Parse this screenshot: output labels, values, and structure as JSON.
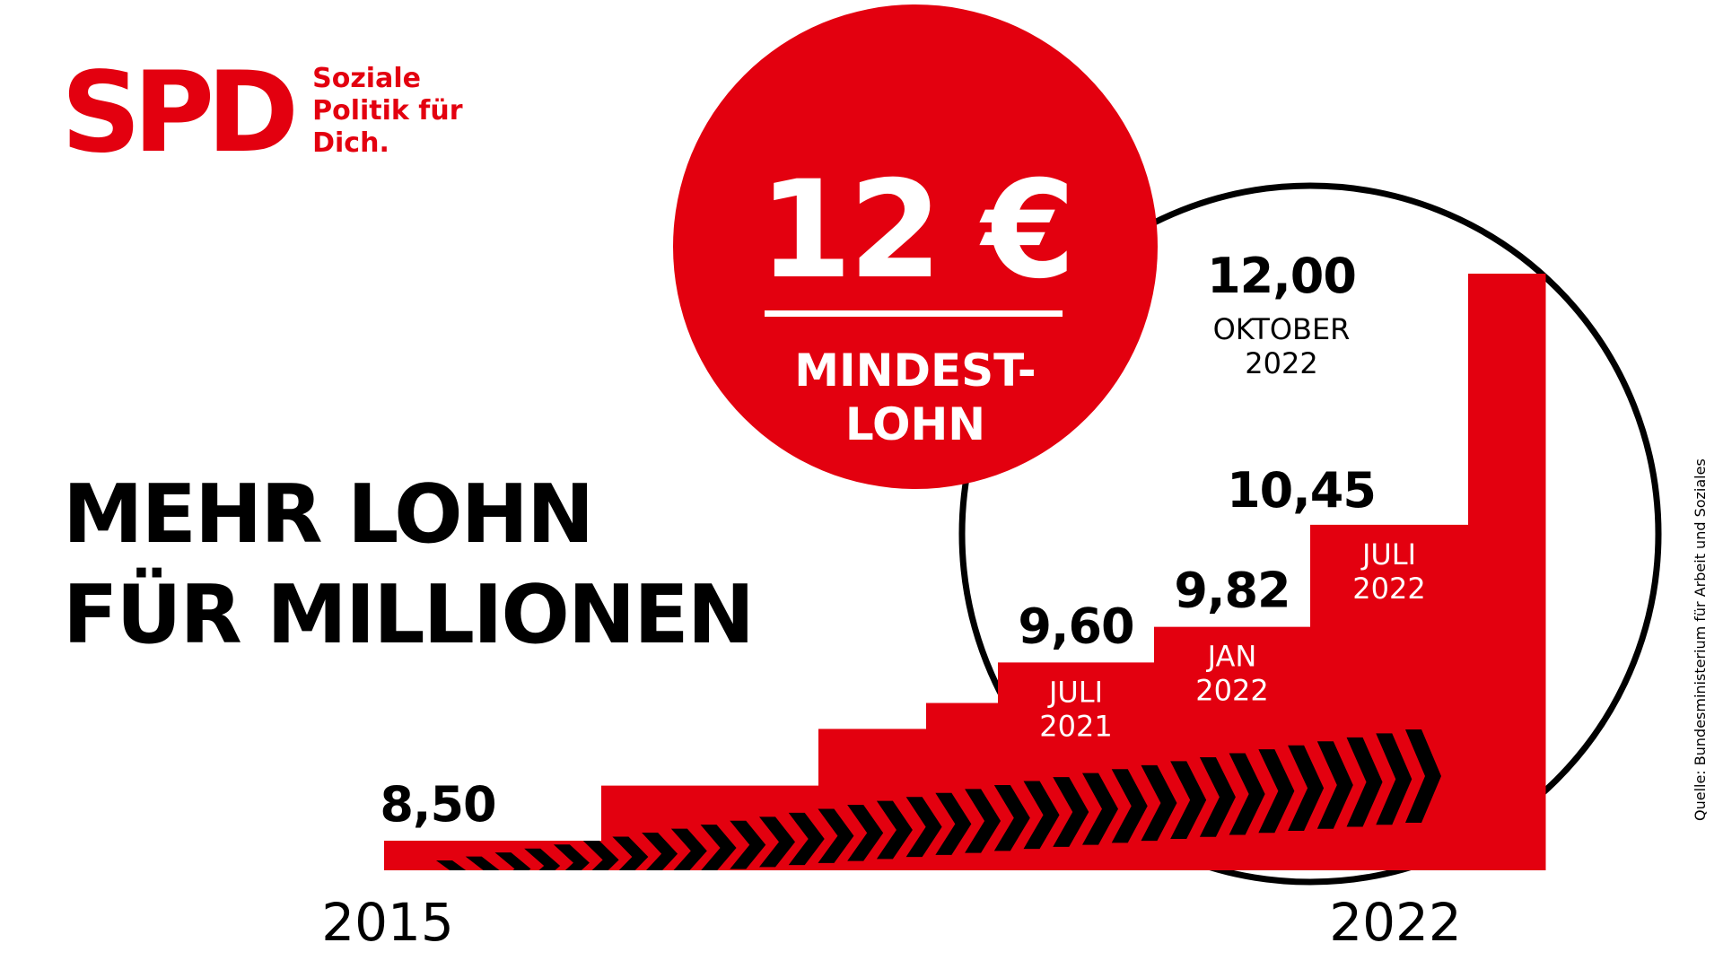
{
  "logo": {
    "mark": "SPD",
    "claim": [
      "Soziale",
      "Politik für",
      "Dich."
    ]
  },
  "headline": [
    "MEHR LOHN",
    "FÜR MILLIONEN"
  ],
  "badge": {
    "value": "12 €",
    "label": [
      "MINDEST-",
      "LOHN"
    ]
  },
  "source": "Quelle: Bundesministerium für Arbeit und Soziales",
  "colors": {
    "red": "#e3000f",
    "black": "#000000",
    "white": "#ffffff"
  },
  "chart_data": {
    "type": "bar",
    "title": "",
    "xlabel": "",
    "ylabel": "",
    "start_label": "2015",
    "end_label": "2022",
    "steps": [
      {
        "value": 8.5,
        "value_label": "8,50",
        "date_label": []
      },
      {
        "value": 8.84,
        "value_label": "",
        "date_label": []
      },
      {
        "value": 9.19,
        "value_label": "",
        "date_label": []
      },
      {
        "value": 9.35,
        "value_label": "",
        "date_label": []
      },
      {
        "value": 9.6,
        "value_label": "9,60",
        "date_label": [
          "JULI",
          "2021"
        ]
      },
      {
        "value": 9.82,
        "value_label": "9,82",
        "date_label": [
          "JAN",
          "2022"
        ]
      },
      {
        "value": 10.45,
        "value_label": "10,45",
        "date_label": [
          "JULI",
          "2022"
        ]
      },
      {
        "value": 12.0,
        "value_label": "12,00",
        "date_label": [
          "OKTOBER",
          "2022"
        ]
      }
    ]
  }
}
